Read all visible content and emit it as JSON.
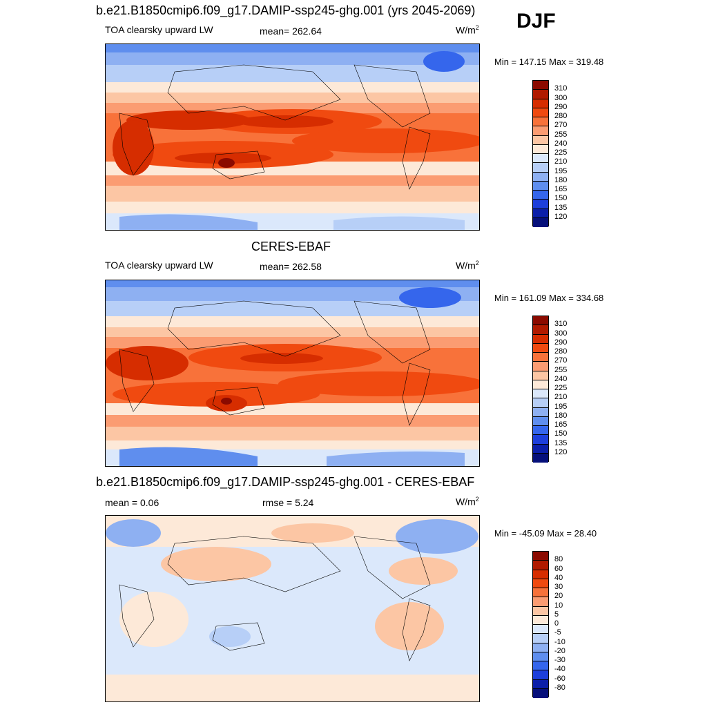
{
  "season": "DJF",
  "unit_base": "W/m",
  "unit_exp": "2",
  "panel1": {
    "title": "b.e21.B1850cmip6.f09_g17.DAMIP-ssp245-ghg.001 (yrs 2045-2069)",
    "left_label": "TOA clearsky upward LW",
    "mean_label": "mean= 262.64",
    "minmax": "Min = 147.15 Max = 319.48"
  },
  "panel2": {
    "title": "CERES-EBAF",
    "left_label": "TOA clearsky upward LW",
    "mean_label": "mean= 262.58",
    "minmax": "Min = 161.09 Max = 334.68"
  },
  "panel3": {
    "title": "b.e21.B1850cmip6.f09_g17.DAMIP-ssp245-ghg.001 - CERES-EBAF",
    "mean_label": "mean =   0.06",
    "rmse_label": "rmse =   5.24",
    "minmax": "Min = -45.09 Max =  28.40"
  },
  "colorbar_abs": {
    "ticks": [
      "310",
      "300",
      "290",
      "280",
      "270",
      "255",
      "240",
      "225",
      "210",
      "195",
      "180",
      "165",
      "150",
      "135",
      "120"
    ],
    "colors": [
      "#8b0a00",
      "#b01a00",
      "#d62d00",
      "#f04a10",
      "#f8723a",
      "#fb9c72",
      "#fcc6a4",
      "#fde9d8",
      "#dbe8fb",
      "#b7cff7",
      "#8eb0f2",
      "#5f8eee",
      "#3566ec",
      "#1d3fdb",
      "#0b1fa9",
      "#06107a"
    ]
  },
  "colorbar_diff": {
    "ticks": [
      "80",
      "60",
      "40",
      "30",
      "20",
      "10",
      "5",
      "0",
      "-5",
      "-10",
      "-20",
      "-30",
      "-40",
      "-60",
      "-80"
    ],
    "colors": [
      "#8b0a00",
      "#b01a00",
      "#d62d00",
      "#f04a10",
      "#f8723a",
      "#fb9c72",
      "#fcc6a4",
      "#fde9d8",
      "#dbe8fb",
      "#b7cff7",
      "#8eb0f2",
      "#5f8eee",
      "#3566ec",
      "#1d3fdb",
      "#0b1fa9",
      "#06107a"
    ]
  }
}
